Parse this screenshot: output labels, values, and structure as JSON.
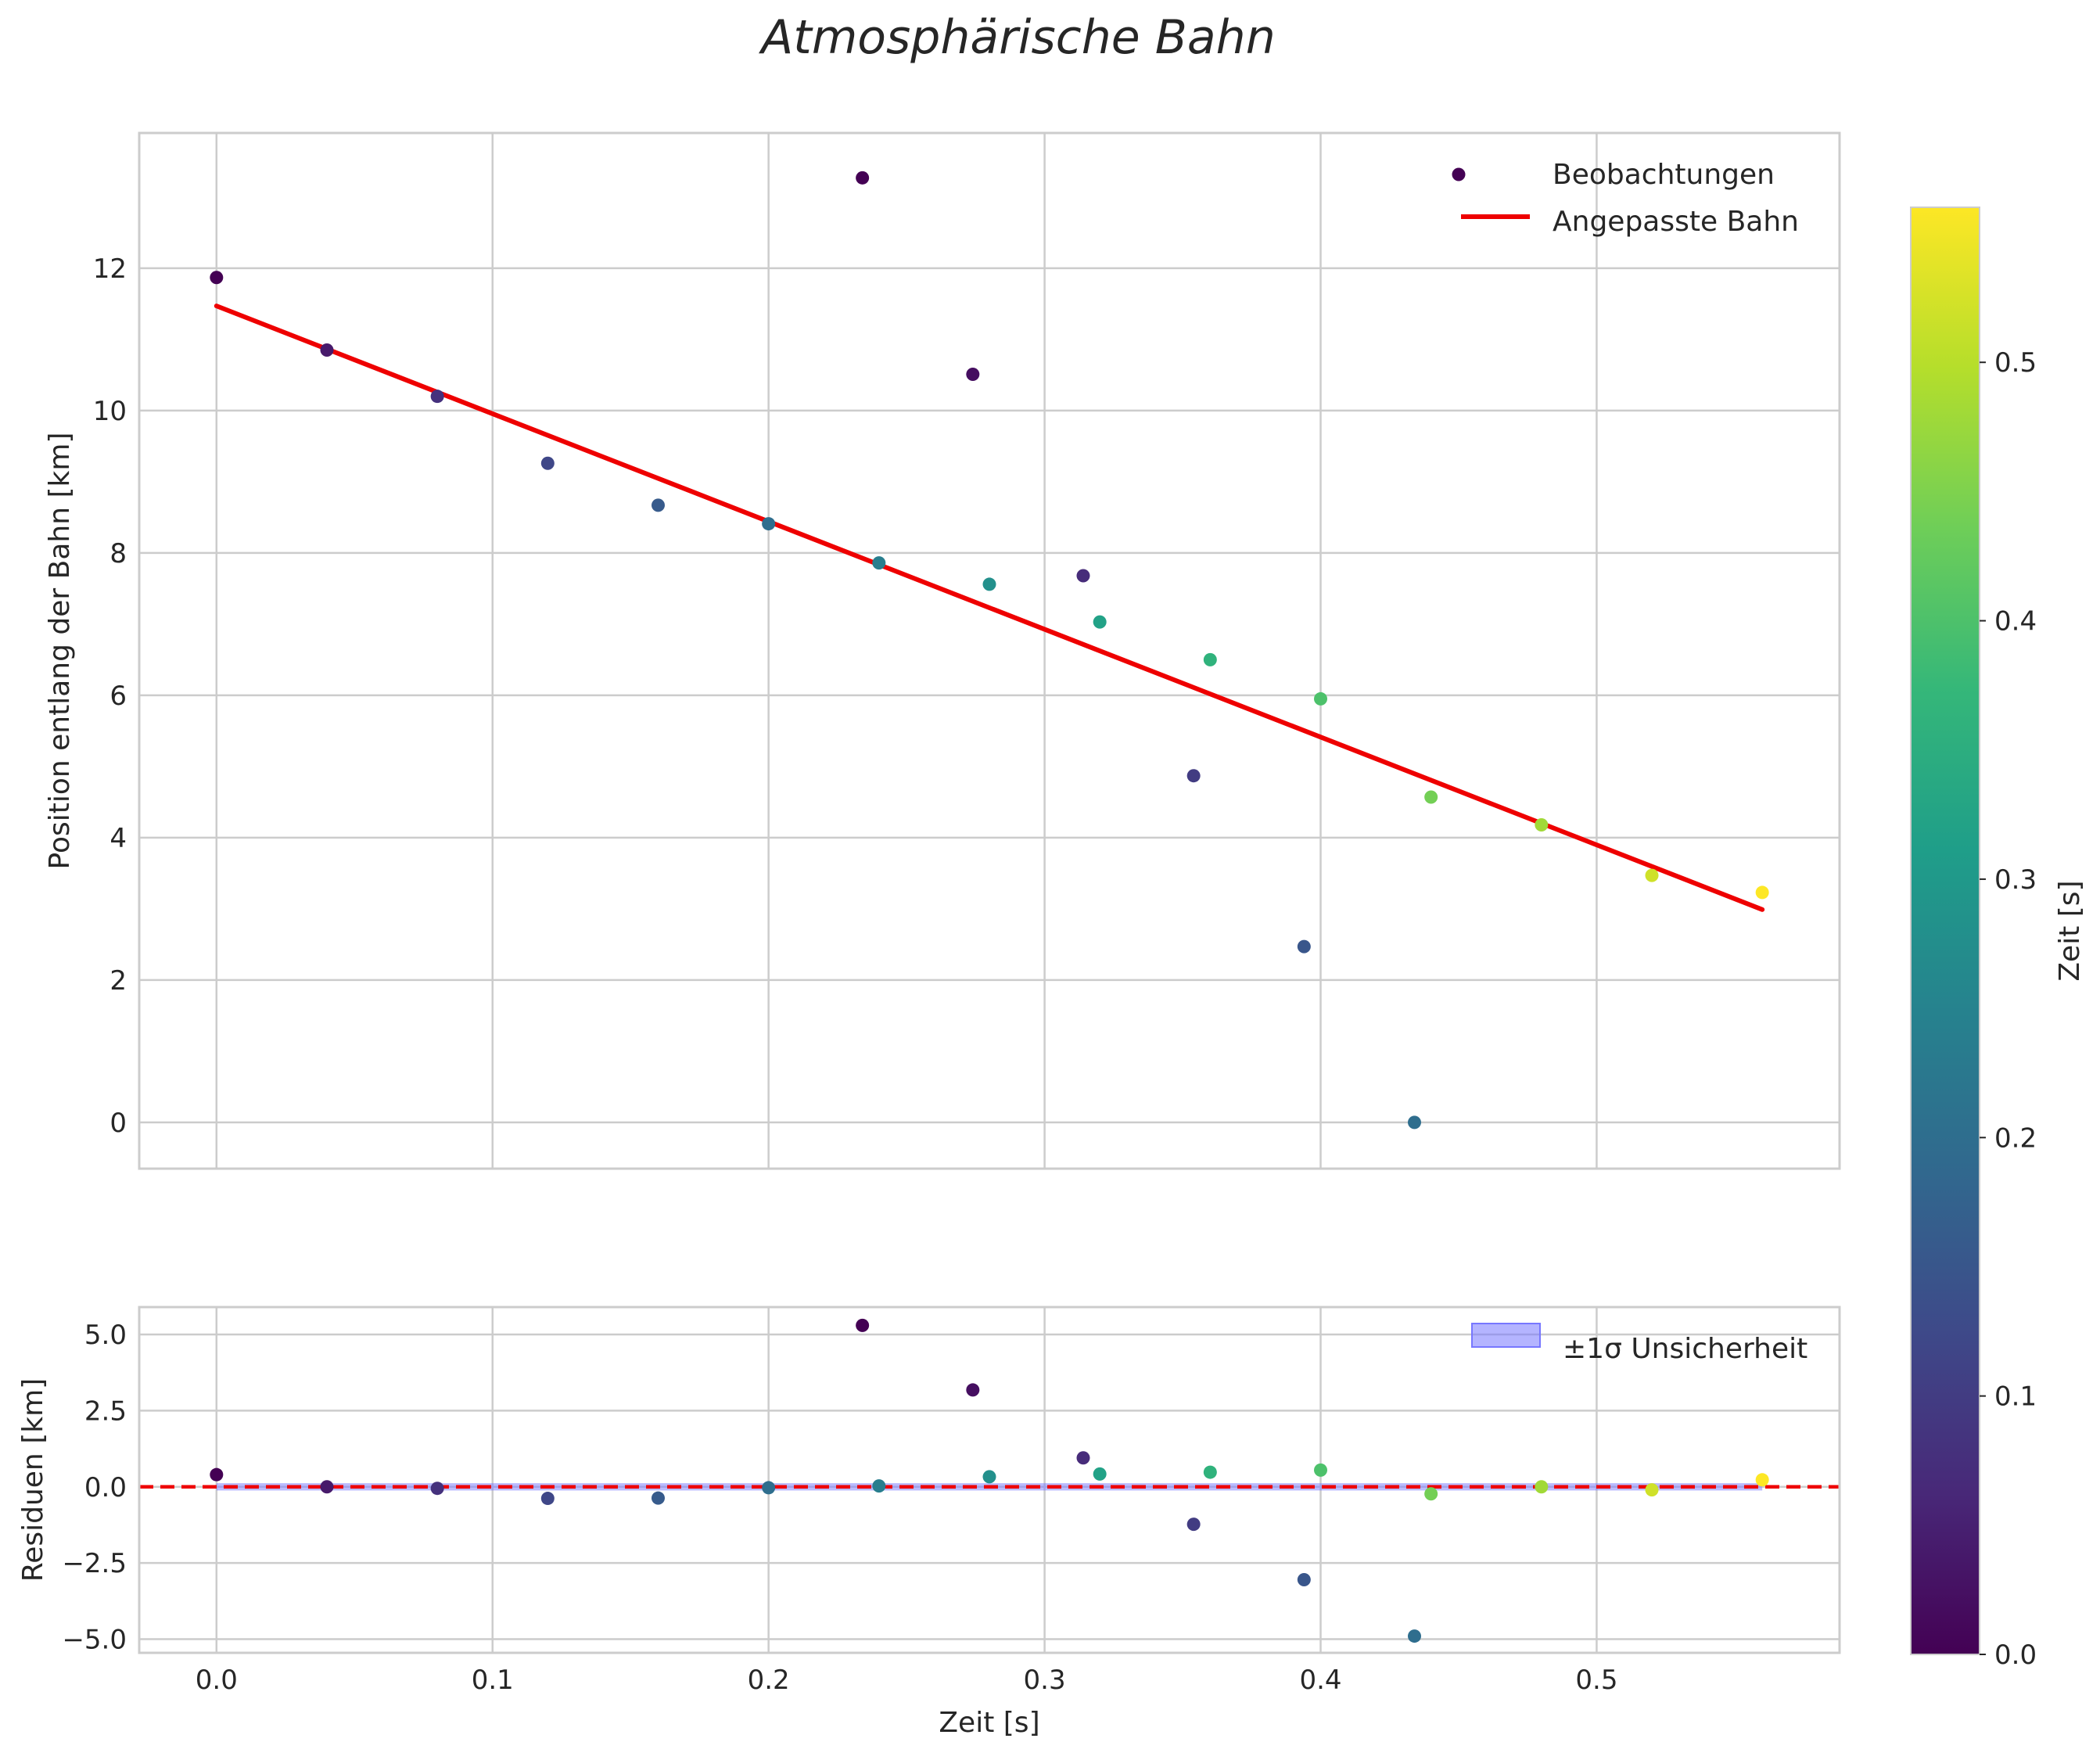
{
  "chart_data": [
    {
      "type": "scatter",
      "name": "main",
      "title": "Atmosphärische Bahn",
      "xlabel": "",
      "ylabel": "Position entlang der Bahn [km]",
      "xlim": [
        -0.028,
        0.588
      ],
      "ylim": [
        -0.65,
        13.9
      ],
      "xticks": [
        0.0,
        0.1,
        0.2,
        0.3,
        0.4,
        0.5
      ],
      "xtick_labels": [
        "0.0",
        "0.1",
        "0.2",
        "0.3",
        "0.4",
        "0.5"
      ],
      "show_xtick_labels": false,
      "yticks": [
        0,
        2,
        4,
        6,
        8,
        10,
        12
      ],
      "ytick_labels": [
        "0",
        "2",
        "4",
        "6",
        "8",
        "10",
        "12"
      ],
      "grid": true,
      "legend": {
        "position": "top-right",
        "entries": [
          {
            "label": "Beobachtungen",
            "kind": "marker"
          },
          {
            "label": "Angepasste Bahn",
            "kind": "line"
          }
        ]
      },
      "series": [
        {
          "name": "Beobachtungen",
          "kind": "scatter",
          "colormap": "viridis",
          "points": [
            {
              "x": 0.0,
              "y": 11.87,
              "c": 0.0
            },
            {
              "x": 0.04,
              "y": 10.85,
              "c": 0.04
            },
            {
              "x": 0.08,
              "y": 10.2,
              "c": 0.08
            },
            {
              "x": 0.12,
              "y": 9.26,
              "c": 0.12
            },
            {
              "x": 0.16,
              "y": 8.67,
              "c": 0.16
            },
            {
              "x": 0.2,
              "y": 8.41,
              "c": 0.2
            },
            {
              "x": 0.234,
              "y": 13.27,
              "c": 0.0
            },
            {
              "x": 0.24,
              "y": 7.86,
              "c": 0.24
            },
            {
              "x": 0.274,
              "y": 10.51,
              "c": 0.02
            },
            {
              "x": 0.28,
              "y": 7.56,
              "c": 0.28
            },
            {
              "x": 0.314,
              "y": 7.68,
              "c": 0.07
            },
            {
              "x": 0.32,
              "y": 7.03,
              "c": 0.32
            },
            {
              "x": 0.354,
              "y": 4.87,
              "c": 0.1
            },
            {
              "x": 0.36,
              "y": 6.5,
              "c": 0.36
            },
            {
              "x": 0.394,
              "y": 2.47,
              "c": 0.15
            },
            {
              "x": 0.4,
              "y": 5.95,
              "c": 0.4
            },
            {
              "x": 0.434,
              "y": 0.0,
              "c": 0.2
            },
            {
              "x": 0.44,
              "y": 4.57,
              "c": 0.44
            },
            {
              "x": 0.48,
              "y": 4.18,
              "c": 0.48
            },
            {
              "x": 0.52,
              "y": 3.47,
              "c": 0.52
            },
            {
              "x": 0.56,
              "y": 3.23,
              "c": 0.56
            }
          ]
        },
        {
          "name": "Angepasste Bahn",
          "kind": "line",
          "color": "#ee0000",
          "x": [
            0.0,
            0.56
          ],
          "y": [
            11.47,
            2.99
          ]
        }
      ]
    },
    {
      "type": "scatter",
      "name": "residuals",
      "title": "",
      "xlabel": "Zeit [s]",
      "ylabel": "Residuen [km]",
      "xlim": [
        -0.028,
        0.588
      ],
      "ylim": [
        -5.45,
        5.9
      ],
      "xticks": [
        0.0,
        0.1,
        0.2,
        0.3,
        0.4,
        0.5
      ],
      "xtick_labels": [
        "0.0",
        "0.1",
        "0.2",
        "0.3",
        "0.4",
        "0.5"
      ],
      "show_xtick_labels": true,
      "yticks": [
        5.0,
        2.5,
        0.0,
        -2.5,
        -5.0
      ],
      "ytick_labels": [
        "5.0",
        "2.5",
        "0.0",
        "−2.5",
        "−5.0"
      ],
      "grid": true,
      "legend": {
        "position": "top-right",
        "entries": [
          {
            "label": "±1σ Unsicherheit",
            "kind": "patch"
          }
        ]
      },
      "band": {
        "label": "±1σ Unsicherheit",
        "x": [
          0.0,
          0.56
        ],
        "lower": -0.12,
        "upper": 0.12,
        "color": "#7777ff"
      },
      "zero_line": {
        "y": 0,
        "color": "#ee0000",
        "style": "dashed"
      },
      "series": [
        {
          "name": "Residuen",
          "kind": "scatter",
          "colormap": "viridis",
          "points": [
            {
              "x": 0.0,
              "y": 0.4,
              "c": 0.0
            },
            {
              "x": 0.04,
              "y": 0.0,
              "c": 0.04
            },
            {
              "x": 0.08,
              "y": -0.05,
              "c": 0.08
            },
            {
              "x": 0.12,
              "y": -0.38,
              "c": 0.12
            },
            {
              "x": 0.16,
              "y": -0.37,
              "c": 0.16
            },
            {
              "x": 0.2,
              "y": -0.03,
              "c": 0.2
            },
            {
              "x": 0.234,
              "y": 5.3,
              "c": 0.0
            },
            {
              "x": 0.24,
              "y": 0.03,
              "c": 0.24
            },
            {
              "x": 0.274,
              "y": 3.18,
              "c": 0.02
            },
            {
              "x": 0.28,
              "y": 0.33,
              "c": 0.28
            },
            {
              "x": 0.314,
              "y": 0.95,
              "c": 0.07
            },
            {
              "x": 0.32,
              "y": 0.42,
              "c": 0.32
            },
            {
              "x": 0.354,
              "y": -1.23,
              "c": 0.1
            },
            {
              "x": 0.36,
              "y": 0.48,
              "c": 0.36
            },
            {
              "x": 0.394,
              "y": -3.05,
              "c": 0.15
            },
            {
              "x": 0.4,
              "y": 0.55,
              "c": 0.4
            },
            {
              "x": 0.434,
              "y": -4.9,
              "c": 0.2
            },
            {
              "x": 0.44,
              "y": -0.23,
              "c": 0.44
            },
            {
              "x": 0.48,
              "y": 0.0,
              "c": 0.48
            },
            {
              "x": 0.52,
              "y": -0.1,
              "c": 0.52
            },
            {
              "x": 0.56,
              "y": 0.23,
              "c": 0.56
            }
          ]
        }
      ]
    },
    {
      "type": "colorbar",
      "name": "colorbar",
      "label": "Zeit [s]",
      "colormap": "viridis",
      "range": [
        0.0,
        0.56
      ],
      "ticks": [
        0.0,
        0.1,
        0.2,
        0.3,
        0.4,
        0.5
      ],
      "tick_labels": [
        "0.0",
        "0.1",
        "0.2",
        "0.3",
        "0.4",
        "0.5"
      ]
    }
  ]
}
